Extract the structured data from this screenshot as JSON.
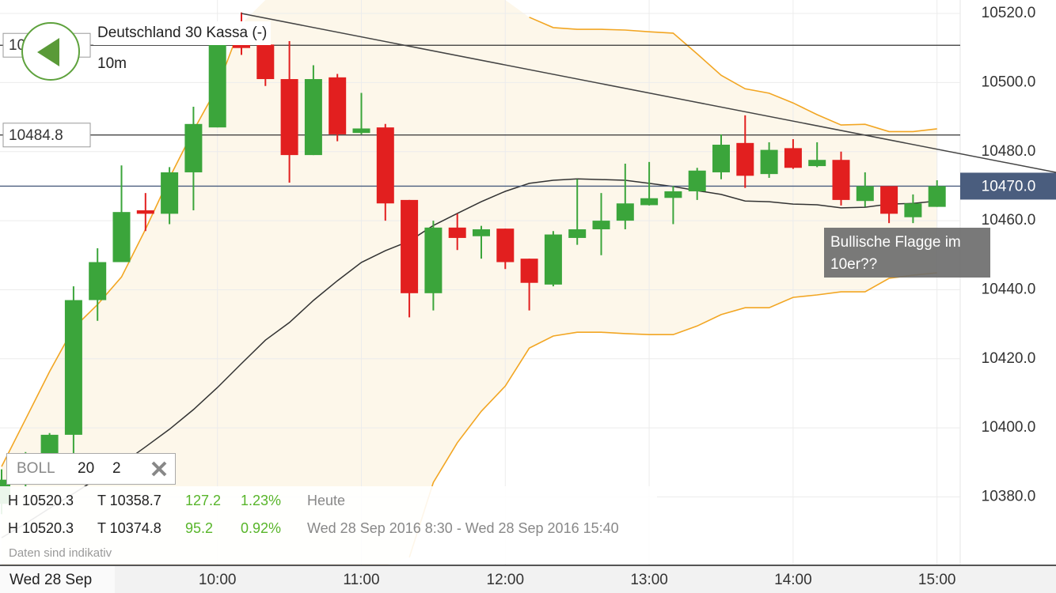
{
  "chart_data": {
    "type": "candlestick",
    "x": [
      "8:30",
      "8:40",
      "8:50",
      "9:00",
      "9:10",
      "9:20",
      "9:30",
      "9:40",
      "9:50",
      "10:00",
      "10:10",
      "10:20",
      "10:30",
      "10:40",
      "10:50",
      "11:00",
      "11:10",
      "11:20",
      "11:30",
      "11:40",
      "11:50",
      "12:00",
      "12:10",
      "12:20",
      "12:30",
      "12:40",
      "12:50",
      "13:00",
      "13:10",
      "13:20",
      "13:30",
      "13:40",
      "13:50",
      "14:00",
      "14:10",
      "14:20",
      "14:30",
      "14:40",
      "14:50",
      "15:00"
    ],
    "open": [
      10378,
      10385,
      10390,
      10398,
      10437,
      10448,
      10463,
      10462,
      10474,
      10487,
      10511,
      10511,
      10501,
      10479,
      10501.5,
      10485.4,
      10487,
      10466,
      10439,
      10458,
      10455.5,
      10457.7,
      10449,
      10441.5,
      10455,
      10457.5,
      10460,
      10464.5,
      10466.6,
      10468.5,
      10474,
      10482.5,
      10473.5,
      10481,
      10475.8,
      10477.6,
      10465.7,
      10470,
      10461,
      10464
    ],
    "high": [
      10388,
      10393,
      10398.5,
      10441,
      10452,
      10476,
      10468,
      10475.5,
      10493,
      10514,
      10520.3,
      10511,
      10512,
      10505,
      10502.5,
      10497,
      10488,
      10466,
      10460,
      10462,
      10458.5,
      10457.7,
      10449,
      10457,
      10472,
      10468,
      10476.5,
      10477,
      10470,
      10475.3,
      10485,
      10490.5,
      10482.7,
      10483.6,
      10482.7,
      10480,
      10474,
      10470,
      10467.6,
      10471.7
    ],
    "low": [
      10375,
      10383,
      10388,
      10392,
      10431,
      10448,
      10457,
      10459,
      10463,
      10487,
      10508,
      10499,
      10471,
      10479,
      10483,
      10485,
      10460,
      10432,
      10434,
      10451.5,
      10449,
      10446,
      10434,
      10441,
      10453,
      10450,
      10457.5,
      10464.4,
      10459,
      10466,
      10472,
      10469.5,
      10472.4,
      10475,
      10475.5,
      10464.4,
      10464,
      10459.3,
      10459.3,
      10464
    ],
    "close": [
      10385,
      10390,
      10398,
      10437,
      10448,
      10462.5,
      10462,
      10474,
      10488,
      10511,
      10510,
      10501,
      10479,
      10501,
      10485,
      10486.7,
      10465,
      10439,
      10458,
      10455,
      10457.5,
      10448,
      10442,
      10456,
      10457.5,
      10460,
      10465,
      10466.5,
      10468.5,
      10474.5,
      10482,
      10473,
      10480.5,
      10475.3,
      10477.6,
      10466,
      10470,
      10462,
      10465,
      10470
    ],
    "up_color": "#3ba53b",
    "down_color": "#e21f1f",
    "bands": {
      "color": "#f2a623",
      "middle_color": "#333333",
      "fill": "#fdf7ea",
      "upper": [
        10388.8,
        10402.5,
        10416.3,
        10428.9,
        10435.7,
        10443.7,
        10457.5,
        10472.4,
        10486.1,
        10498.7,
        10517,
        null,
        null,
        null,
        null,
        null,
        null,
        null,
        null,
        null,
        null,
        null,
        10518.9,
        10515.9,
        10515.4,
        10515.4,
        10515.2,
        10514.7,
        10514.3,
        10508.3,
        10502.1,
        10498.2,
        10496.9,
        10494.1,
        10490.7,
        10487.7,
        10487.9,
        10485.8,
        10485.8,
        10486.6
      ],
      "middle": [
        10368.2,
        10372.3,
        10376.7,
        10381,
        10385.4,
        10389.5,
        10394.5,
        10399.6,
        10405.3,
        10411.7,
        10418.6,
        10425.4,
        10430.5,
        10436.9,
        10442.6,
        10447.9,
        10451.3,
        10454.1,
        10458.6,
        10462.1,
        10465.5,
        10468.5,
        10470.8,
        10471.7,
        10472.1,
        10471.9,
        10471.7,
        10470.8,
        10469.9,
        10468.7,
        10467.6,
        10465.7,
        10465.5,
        10464.8,
        10464.6,
        10463.7,
        10463.9,
        10464.8,
        10465,
        10465.7
      ],
      "lower": [
        null,
        null,
        null,
        null,
        null,
        null,
        null,
        null,
        null,
        null,
        null,
        null,
        null,
        null,
        null,
        null,
        null,
        10362.5,
        10384.2,
        10395.7,
        10404.8,
        10412.1,
        10423.1,
        10426.6,
        10427.7,
        10427.7,
        10427.3,
        10427,
        10427,
        10429.5,
        10432.8,
        10434.8,
        10434.8,
        10437.8,
        10438.5,
        10439.4,
        10439.4,
        10443.3,
        10444.2,
        10444.9
      ]
    },
    "ylim": [
      10360.2,
      10523.9
    ],
    "yticks": [
      {
        "value": 10380,
        "label": "10380.0"
      },
      {
        "value": 10400,
        "label": "10400.0"
      },
      {
        "value": 10420,
        "label": "10420.0"
      },
      {
        "value": 10440,
        "label": "10440.0"
      },
      {
        "value": 10460,
        "label": "10460.0"
      },
      {
        "value": 10480,
        "label": "10480.0"
      },
      {
        "value": 10500,
        "label": "10500.0"
      },
      {
        "value": 10520,
        "label": "10520.0"
      }
    ],
    "xticks": [
      "10:00",
      "11:00",
      "12:00",
      "13:00",
      "14:00",
      "15:00"
    ],
    "grid": true,
    "hlines": [
      10510.8,
      10484.8
    ],
    "price_line": {
      "value": 10470,
      "label": "10470.0",
      "color": "#4a5d7e"
    },
    "trendline": {
      "x": [
        "10:10",
        "15:00"
      ],
      "values": [
        10520,
        10480.7
      ]
    },
    "annotation": "Bullische Flagge im 10er??",
    "date_label": "Wed 28 Sep"
  },
  "header": {
    "title": "Deutschland 30 Kassa (-)",
    "interval": "10m"
  },
  "indicator": {
    "name": "BOLL",
    "period": 20,
    "deviation": 2
  },
  "stats": {
    "rows": [
      [
        "H 10520.3",
        "T 10358.7",
        "127.2",
        "1.23%",
        "Heute"
      ],
      [
        "H 10520.3",
        "T 10374.8",
        "95.2",
        "0.92%",
        "Wed 28 Sep 2016 8:30 - Wed 28 Sep 2016 15:40"
      ]
    ],
    "note": "Daten sind indikativ"
  }
}
